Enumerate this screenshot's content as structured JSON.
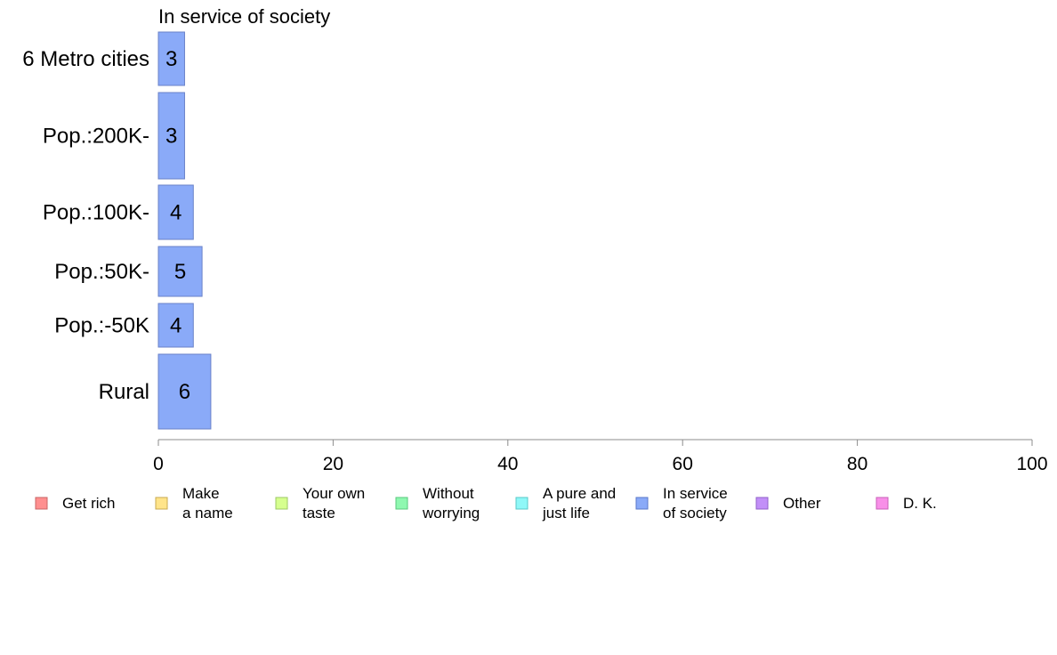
{
  "chart_data": {
    "type": "bar",
    "orientation": "horizontal",
    "title": "In service of society",
    "xlabel": "",
    "ylabel": "",
    "xlim": [
      0,
      100
    ],
    "x_ticks": [
      "0",
      "20",
      "40",
      "60",
      "80",
      "100"
    ],
    "grid": false,
    "categories": [
      "6 Metro cities",
      "Pop.:200K-",
      "Pop.:100K-",
      "Pop.:50K-",
      "Pop.:-50K",
      "Rural"
    ],
    "series": [
      {
        "name": "In service of society",
        "color": "#8aaaf8",
        "values": [
          3,
          3,
          4,
          5,
          4,
          6
        ],
        "labels": [
          "3",
          "3",
          "4",
          "5",
          "4",
          "6"
        ]
      }
    ],
    "legend": {
      "placement": "bottom",
      "entries": [
        {
          "lines": [
            "Get rich"
          ],
          "color": "#ff8f8f",
          "border": "#c86464"
        },
        {
          "lines": [
            "Make",
            "a name"
          ],
          "color": "#ffe48a",
          "border": "#c8aa50"
        },
        {
          "lines": [
            "Your own",
            "taste"
          ],
          "color": "#d6ff8f",
          "border": "#9cc864"
        },
        {
          "lines": [
            "Without",
            "worrying"
          ],
          "color": "#8ff8b0",
          "border": "#5ac87e"
        },
        {
          "lines": [
            "A pure and",
            "just life"
          ],
          "color": "#8ff8f8",
          "border": "#5ac8c8"
        },
        {
          "lines": [
            "In service",
            "of society"
          ],
          "color": "#8aaaf8",
          "border": "#5a78c8"
        },
        {
          "lines": [
            "Other"
          ],
          "color": "#c28ff8",
          "border": "#9060c8"
        },
        {
          "lines": [
            "D. K."
          ],
          "color": "#f88fe8",
          "border": "#c860b8"
        }
      ]
    }
  }
}
